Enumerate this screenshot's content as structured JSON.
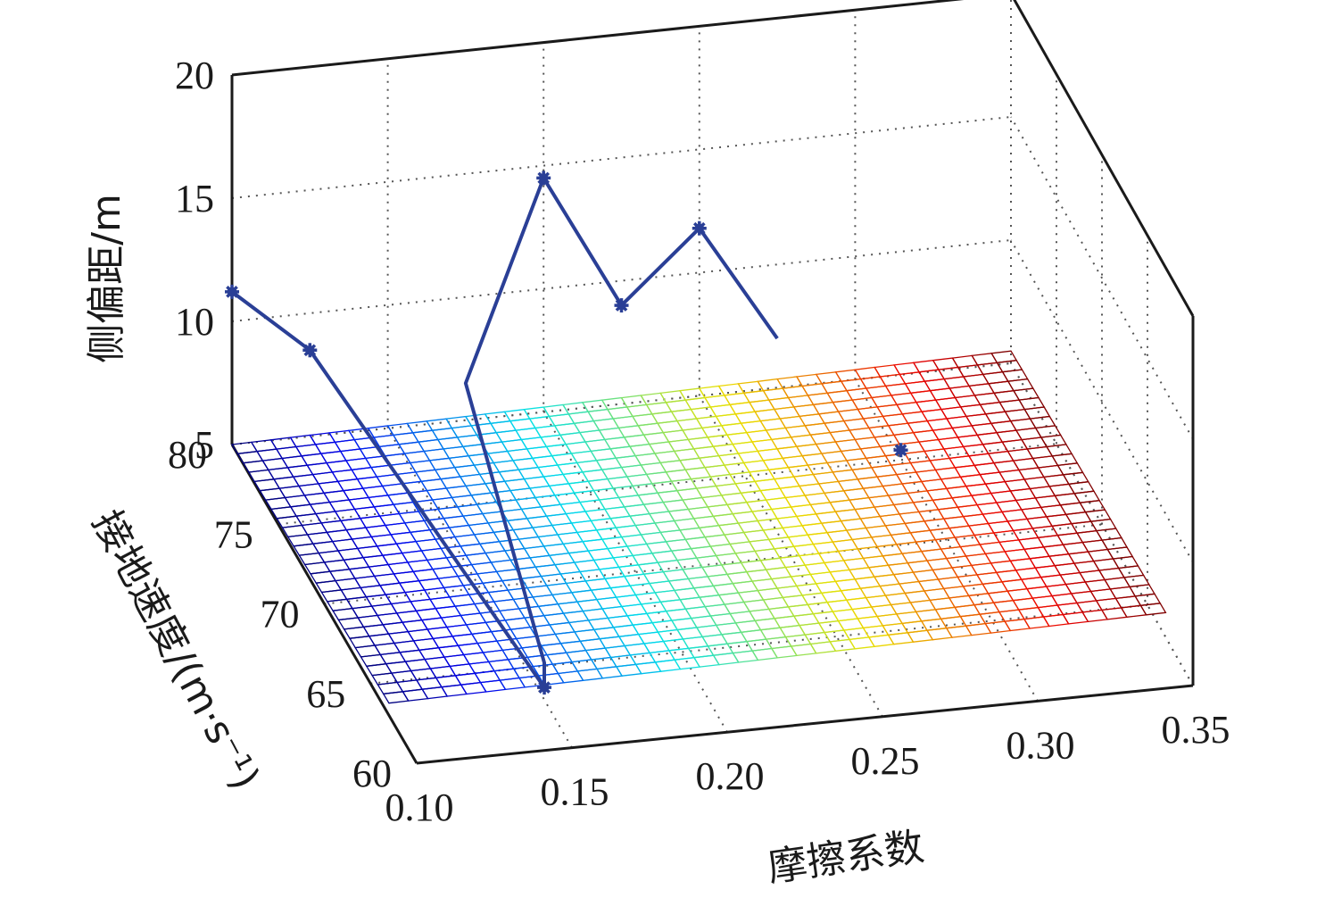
{
  "chart_data": {
    "type": "surface3d",
    "xlabel": "摩擦系数",
    "ylabel": "接地速度/(m·s⁻¹)",
    "zlabel": "侧偏距/m",
    "xlim": [
      0.1,
      0.35
    ],
    "ylim": [
      60,
      80
    ],
    "zlim": [
      5,
      20
    ],
    "xticks": [
      "0.10",
      "0.15",
      "0.20",
      "0.25",
      "0.30",
      "0.35"
    ],
    "yticks": [
      "60",
      "65",
      "70",
      "75",
      "80"
    ],
    "zticks": [
      "5",
      "10",
      "15",
      "20"
    ],
    "grid": true,
    "colormap": "jet",
    "surface": {
      "x_range": [
        0.1,
        0.35
      ],
      "y_range": [
        63,
        80
      ],
      "z_corners": {
        "x_min_y_max": 5.0,
        "x_max_y_max": 5.5,
        "x_min_y_min": 5.5,
        "x_max_y_min": 6.0
      },
      "x_steps": 40,
      "y_steps": 28
    },
    "series": [
      {
        "points": [
          {
            "x": 0.1,
            "y": 80,
            "z": 11.2
          },
          {
            "x": 0.125,
            "y": 80,
            "z": 8.5
          },
          {
            "x": 0.15,
            "y": 63,
            "z": 5.5
          },
          {
            "x": 0.15,
            "y": 63,
            "z": 6.5
          },
          {
            "x": 0.175,
            "y": 80,
            "z": 6.5
          },
          {
            "x": 0.2,
            "y": 80,
            "z": 14.5
          },
          {
            "x": 0.225,
            "y": 80,
            "z": 9.0
          },
          {
            "x": 0.25,
            "y": 80,
            "z": 11.8
          },
          {
            "x": 0.275,
            "y": 80,
            "z": 7.0
          }
        ],
        "markers": [
          0,
          1,
          2,
          5,
          6,
          7
        ]
      },
      {
        "points": [
          {
            "x": 0.3,
            "y": 75,
            "z": 5.4
          }
        ],
        "markers": [
          0
        ]
      }
    ]
  }
}
